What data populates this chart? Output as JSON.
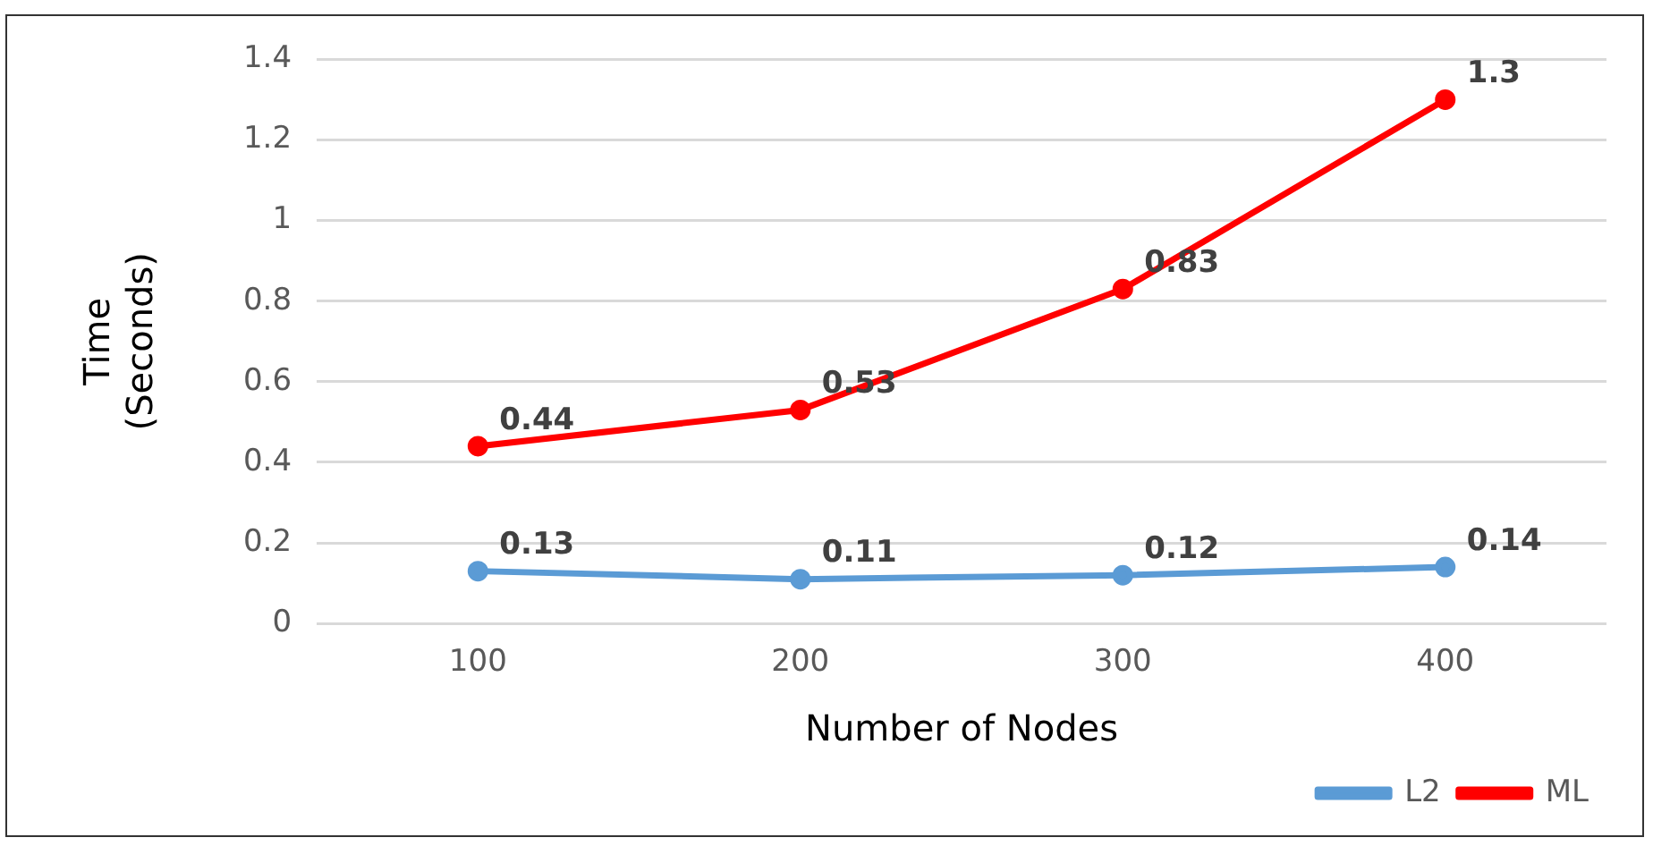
{
  "chart_data": {
    "type": "line",
    "xlabel": "Number of Nodes",
    "ylabel": "Time\n(Seconds)",
    "categories": [
      "100",
      "200",
      "300",
      "400"
    ],
    "series": [
      {
        "name": "L2",
        "color": "#5b9bd5",
        "values": [
          0.13,
          0.11,
          0.12,
          0.14
        ]
      },
      {
        "name": "ML",
        "color": "#ff0000",
        "values": [
          0.44,
          0.53,
          0.83,
          1.3
        ]
      }
    ],
    "ylim": [
      0,
      1.4
    ],
    "yticks": [
      0,
      0.2,
      0.4,
      0.6,
      0.8,
      1,
      1.2,
      1.4
    ],
    "grid": "y",
    "legend": "bottom right",
    "marker": "circle",
    "line_style": "solid",
    "data_labels": true
  }
}
